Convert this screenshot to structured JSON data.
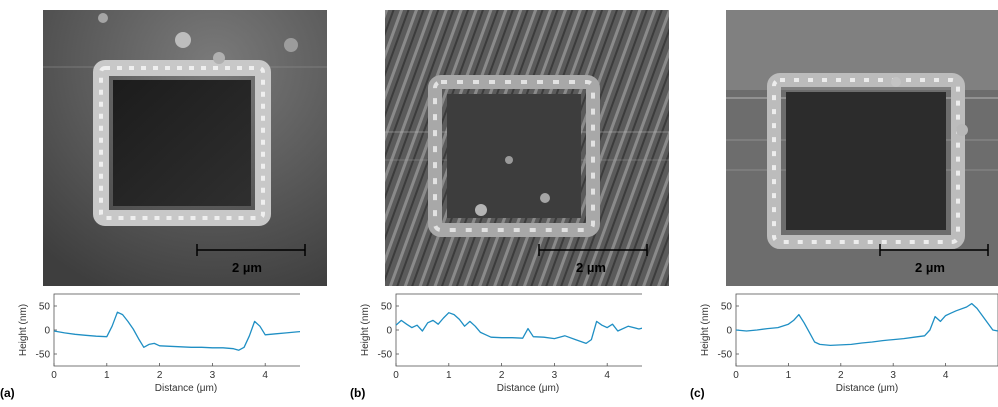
{
  "panels": [
    {
      "letter": "(a)",
      "scalebar": "2 µm"
    },
    {
      "letter": "(b)",
      "scalebar": "2 µm"
    },
    {
      "letter": "(c)",
      "scalebar": "2 µm"
    }
  ],
  "chart_data": [
    {
      "type": "line",
      "xlabel": "Distance (μm)",
      "ylabel": "Height (nm)",
      "xlim": [
        0,
        5
      ],
      "ylim": [
        -75,
        75
      ],
      "xticks": [
        0,
        1,
        2,
        3,
        4,
        5
      ],
      "yticks": [
        -50,
        0,
        50
      ],
      "grid": false,
      "series": [
        {
          "color": "#1f8fc4",
          "x": [
            0,
            0.2,
            0.4,
            0.6,
            0.8,
            1.0,
            1.1,
            1.2,
            1.3,
            1.4,
            1.5,
            1.6,
            1.7,
            1.8,
            1.9,
            2.0,
            2.2,
            2.4,
            2.6,
            2.8,
            3.0,
            3.2,
            3.4,
            3.5,
            3.6,
            3.7,
            3.8,
            3.9,
            4.0,
            4.1,
            4.2,
            4.4,
            4.6,
            4.8,
            5.0
          ],
          "y": [
            -2,
            -6,
            -9,
            -11,
            -13,
            -14,
            8,
            37,
            32,
            18,
            2,
            -18,
            -36,
            -30,
            -28,
            -33,
            -34,
            -35,
            -36,
            -36,
            -37,
            -37,
            -39,
            -42,
            -36,
            -12,
            18,
            8,
            -10,
            -9,
            -8,
            -6,
            -4,
            -2,
            0
          ]
        }
      ]
    },
    {
      "type": "line",
      "xlabel": "Distance (μm)",
      "ylabel": "Height (nm)",
      "xlim": [
        0,
        5
      ],
      "ylim": [
        -75,
        75
      ],
      "xticks": [
        0,
        1,
        2,
        3,
        4,
        5
      ],
      "yticks": [
        -50,
        0,
        50
      ],
      "grid": false,
      "series": [
        {
          "color": "#1f8fc4",
          "x": [
            0,
            0.1,
            0.2,
            0.3,
            0.4,
            0.5,
            0.6,
            0.7,
            0.8,
            0.9,
            1.0,
            1.1,
            1.2,
            1.3,
            1.4,
            1.5,
            1.6,
            1.7,
            1.8,
            2.0,
            2.2,
            2.4,
            2.5,
            2.6,
            2.8,
            3.0,
            3.2,
            3.4,
            3.6,
            3.7,
            3.8,
            3.9,
            4.0,
            4.1,
            4.2,
            4.4,
            4.6,
            4.8,
            5.0
          ],
          "y": [
            10,
            20,
            12,
            5,
            10,
            -2,
            15,
            20,
            12,
            25,
            36,
            32,
            22,
            8,
            18,
            8,
            -5,
            -10,
            -15,
            -16,
            -16,
            -17,
            3,
            -14,
            -15,
            -18,
            -12,
            -20,
            -28,
            -20,
            18,
            10,
            5,
            12,
            -2,
            8,
            2,
            8,
            -4
          ]
        }
      ]
    },
    {
      "type": "line",
      "xlabel": "Distance (μm)",
      "ylabel": "Height (nm)",
      "xlim": [
        0,
        5
      ],
      "ylim": [
        -75,
        75
      ],
      "xticks": [
        0,
        1,
        2,
        3,
        4
      ],
      "yticks": [
        -50,
        0,
        50
      ],
      "grid": false,
      "series": [
        {
          "color": "#1f8fc4",
          "x": [
            0,
            0.2,
            0.4,
            0.6,
            0.8,
            1.0,
            1.1,
            1.2,
            1.3,
            1.4,
            1.5,
            1.6,
            1.8,
            2.0,
            2.2,
            2.4,
            2.6,
            2.8,
            3.0,
            3.2,
            3.4,
            3.6,
            3.7,
            3.8,
            3.9,
            4.0,
            4.1,
            4.2,
            4.4,
            4.5,
            4.6,
            4.7,
            4.8,
            4.9,
            5.0
          ],
          "y": [
            0,
            -2,
            0,
            3,
            5,
            12,
            20,
            32,
            15,
            -5,
            -25,
            -30,
            -32,
            -31,
            -30,
            -27,
            -25,
            -22,
            -20,
            -18,
            -15,
            -12,
            0,
            28,
            18,
            30,
            35,
            40,
            48,
            55,
            45,
            30,
            15,
            0,
            -2
          ]
        }
      ]
    }
  ]
}
